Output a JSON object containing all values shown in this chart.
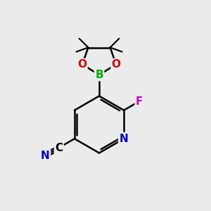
{
  "bg_color": "#ebebeb",
  "atom_colors": {
    "C": "#000000",
    "N": "#0000bb",
    "O": "#cc0000",
    "B": "#00aa00",
    "F": "#cc00cc"
  },
  "bond_color": "#000000",
  "bond_width": 1.8,
  "font_size_atoms": 11,
  "font_size_methyl": 9
}
